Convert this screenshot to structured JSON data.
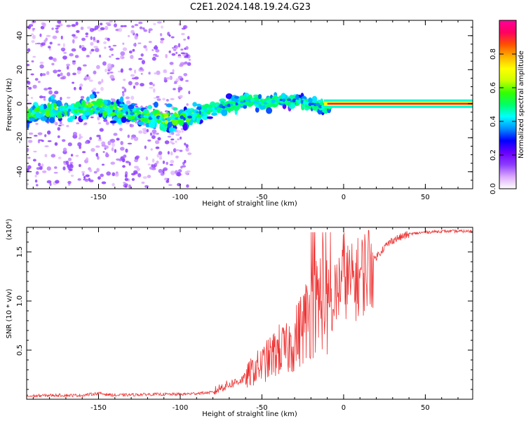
{
  "title": "C2E1.2024.148.19.24.G23",
  "chart_data": [
    {
      "type": "heatmap",
      "xlabel": "Height of straight line (km)",
      "ylabel": "Frequency (Hz)",
      "xlim": [
        -194,
        79
      ],
      "ylim": [
        -50,
        49
      ],
      "xticks": [
        -150,
        -100,
        -50,
        0,
        50
      ],
      "yticks": [
        -40,
        -20,
        0,
        20,
        40
      ],
      "ridge": {
        "x": [
          -190,
          -170,
          -150,
          -130,
          -110,
          -95,
          -85,
          -75,
          -65,
          -58,
          -50,
          -40,
          -30,
          -20,
          -12,
          -5,
          0,
          5,
          10,
          15,
          20,
          30,
          50,
          79
        ],
        "frequency": [
          -6,
          -3,
          -2,
          -6,
          -9,
          -8,
          -4,
          -2,
          0,
          2,
          0,
          2,
          2,
          0,
          -2,
          0,
          0,
          -1,
          -1,
          0,
          0,
          0,
          0,
          0
        ]
      },
      "colorbar": {
        "label": "Normalized spectral amplitude",
        "range": [
          0.0,
          1.0
        ],
        "ticks": [
          "0.0",
          "0.2",
          "0.4",
          "0.6",
          "0.8"
        ],
        "colors": [
          "#ffffff",
          "#dcaaff",
          "#8c3cff",
          "#6a00ff",
          "#0000ff",
          "#0090ff",
          "#00ffff",
          "#00ff66",
          "#33ff00",
          "#ccff00",
          "#ffff00",
          "#ffb000",
          "#ff5000",
          "#ff0060",
          "#ff0099"
        ]
      }
    },
    {
      "type": "line",
      "xlabel": "Height of straight line (km)",
      "ylabel": "SNR (10 * v/v)",
      "y_multiplier": "(x10⁴)",
      "xlim": [
        -194,
        79
      ],
      "ylim": [
        0,
        1.75
      ],
      "xticks": [
        -150,
        -100,
        -50,
        0,
        50
      ],
      "yticks": [
        "0.5",
        "1.0",
        "1.5"
      ],
      "line_color": "#ee3333",
      "series": [
        {
          "x": [
            -194,
            -180,
            -160,
            -150,
            -140,
            -120,
            -100,
            -90,
            -80,
            -75,
            -70,
            -65,
            -60,
            -55,
            -50,
            -45,
            -40,
            -35,
            -30,
            -25,
            -20,
            -15,
            -12,
            -10,
            -8,
            -5,
            -2,
            0,
            2,
            5,
            10,
            15,
            20,
            25,
            30,
            40,
            50,
            60,
            70,
            79
          ],
          "values": [
            0.03,
            0.04,
            0.04,
            0.06,
            0.04,
            0.05,
            0.05,
            0.06,
            0.07,
            0.12,
            0.15,
            0.18,
            0.22,
            0.3,
            0.35,
            0.42,
            0.5,
            0.5,
            0.6,
            0.75,
            0.9,
            1.0,
            1.1,
            0.9,
            0.85,
            1.05,
            1.2,
            1.3,
            1.22,
            1.18,
            1.25,
            1.35,
            1.45,
            1.55,
            1.62,
            1.68,
            1.7,
            1.71,
            1.71,
            1.71
          ]
        }
      ]
    }
  ]
}
